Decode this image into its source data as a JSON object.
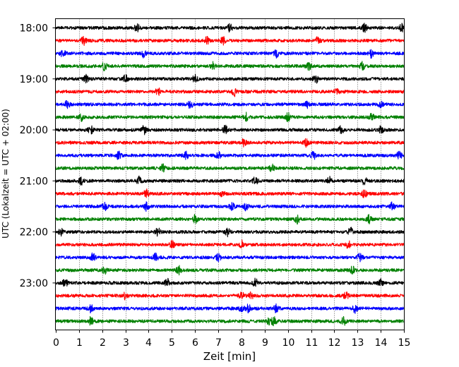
{
  "chart_data": {
    "type": "line",
    "title": "",
    "xlabel": "Zeit  [min]",
    "ylabel": "UTC (Lokalzeit = UTC + 02:00)",
    "xlim": [
      0,
      15
    ],
    "x_ticks": [
      "0",
      "1",
      "2",
      "3",
      "4",
      "5",
      "6",
      "7",
      "8",
      "9",
      "10",
      "11",
      "12",
      "13",
      "14",
      "15"
    ],
    "y_ticks": [
      "18:00",
      "19:00",
      "20:00",
      "21:00",
      "22:00",
      "23:00"
    ],
    "vertical_grid": "dotted, every minute",
    "legend": "none",
    "trace_interval_minutes": 15,
    "trace_color_cycle": [
      "#000000",
      "#ff0000",
      "#0000ff",
      "#008000"
    ],
    "traces": [
      {
        "start": "18:00",
        "color": "#000000",
        "events": [
          3.5,
          7.5,
          13.3,
          14.9
        ]
      },
      {
        "start": "18:15",
        "color": "#ff0000",
        "events": [
          1.2,
          6.5,
          7.2,
          11.3
        ]
      },
      {
        "start": "18:30",
        "color": "#0000ff",
        "events": [
          0.3,
          3.8,
          9.5,
          13.6
        ]
      },
      {
        "start": "18:45",
        "color": "#008000",
        "events": [
          2.1,
          6.8,
          10.9,
          13.2
        ]
      },
      {
        "start": "19:00",
        "color": "#000000",
        "events": [
          1.3,
          3.0,
          6.0,
          11.2
        ]
      },
      {
        "start": "19:15",
        "color": "#ff0000",
        "events": [
          4.4,
          7.7,
          12.1
        ]
      },
      {
        "start": "19:30",
        "color": "#0000ff",
        "events": [
          0.5,
          5.8,
          10.8,
          14.0
        ]
      },
      {
        "start": "19:45",
        "color": "#008000",
        "events": [
          1.1,
          8.2,
          10.0,
          13.6
        ]
      },
      {
        "start": "20:00",
        "color": "#000000",
        "events": [
          1.5,
          3.8,
          7.3,
          12.3,
          14.0
        ]
      },
      {
        "start": "20:15",
        "color": "#ff0000",
        "events": [
          8.1,
          10.8
        ]
      },
      {
        "start": "20:30",
        "color": "#0000ff",
        "events": [
          2.7,
          5.6,
          7.0,
          11.1,
          14.8
        ]
      },
      {
        "start": "20:45",
        "color": "#008000",
        "events": [
          4.6,
          9.3
        ]
      },
      {
        "start": "21:00",
        "color": "#000000",
        "events": [
          1.1,
          3.6,
          8.6,
          11.8,
          13.3
        ]
      },
      {
        "start": "21:15",
        "color": "#ff0000",
        "events": [
          3.9,
          7.2,
          13.3
        ]
      },
      {
        "start": "21:30",
        "color": "#0000ff",
        "events": [
          2.1,
          3.9,
          7.6,
          8.2,
          14.5
        ]
      },
      {
        "start": "21:45",
        "color": "#008000",
        "events": [
          6.0,
          10.4,
          13.5
        ]
      },
      {
        "start": "22:00",
        "color": "#000000",
        "events": [
          0.2,
          4.4,
          7.4,
          12.7
        ]
      },
      {
        "start": "22:15",
        "color": "#ff0000",
        "events": [
          5.0,
          8.0,
          12.6
        ]
      },
      {
        "start": "22:30",
        "color": "#0000ff",
        "events": [
          1.6,
          4.3,
          7.0,
          13.1
        ]
      },
      {
        "start": "22:45",
        "color": "#008000",
        "events": [
          2.1,
          5.3,
          12.8
        ]
      },
      {
        "start": "23:00",
        "color": "#000000",
        "events": [
          0.4,
          4.8,
          8.6,
          14.0
        ]
      },
      {
        "start": "23:15",
        "color": "#ff0000",
        "events": [
          3.0,
          8.0,
          8.4,
          12.5
        ]
      },
      {
        "start": "23:30",
        "color": "#0000ff",
        "events": [
          1.5,
          8.0,
          8.3,
          9.5,
          12.9
        ]
      },
      {
        "start": "23:45",
        "color": "#008000",
        "events": [
          1.5,
          9.2,
          9.4,
          12.4
        ]
      }
    ]
  }
}
